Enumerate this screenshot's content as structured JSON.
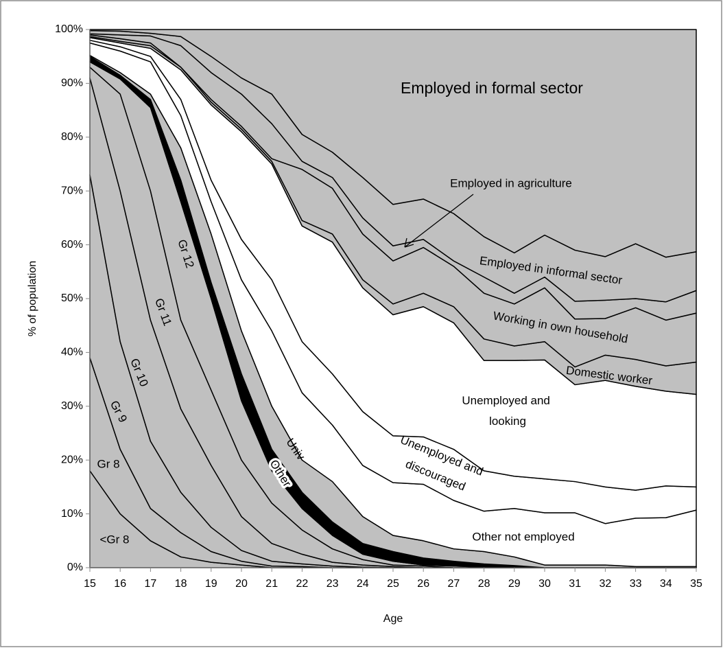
{
  "chart_data": {
    "type": "stacked_area",
    "x_label": "Age",
    "y_label": "% of population",
    "x": [
      15,
      16,
      17,
      18,
      19,
      20,
      21,
      22,
      23,
      24,
      25,
      26,
      27,
      28,
      29,
      30,
      31,
      32,
      33,
      34,
      35
    ],
    "xlim": [
      15,
      35
    ],
    "xticks": [
      15,
      16,
      17,
      18,
      19,
      20,
      21,
      22,
      23,
      24,
      25,
      26,
      27,
      28,
      29,
      30,
      31,
      32,
      33,
      34,
      35
    ],
    "ylim": [
      0,
      100
    ],
    "yticks": [
      {
        "value": 0,
        "label": "0%"
      },
      {
        "value": 10,
        "label": "10%"
      },
      {
        "value": 20,
        "label": "20%"
      },
      {
        "value": 30,
        "label": "30%"
      },
      {
        "value": 40,
        "label": "40%"
      },
      {
        "value": 50,
        "label": "50%"
      },
      {
        "value": 60,
        "label": "60%"
      },
      {
        "value": 70,
        "label": "70%"
      },
      {
        "value": 80,
        "label": "80%"
      },
      {
        "value": 90,
        "label": "90%"
      },
      {
        "value": 100,
        "label": "100%"
      }
    ],
    "series": [
      {
        "name": "<Gr 8",
        "color": "#c0c0c0",
        "values": [
          18,
          10,
          5,
          2,
          1,
          0.5,
          0,
          0,
          0,
          0,
          0,
          0,
          0,
          0,
          0,
          0,
          0,
          0,
          0,
          0,
          0
        ]
      },
      {
        "name": "Gr 8",
        "color": "#c0c0c0",
        "values": [
          21,
          12,
          6,
          4.5,
          2,
          0.7,
          0.3,
          0.2,
          0,
          0,
          0,
          0,
          0,
          0,
          0,
          0,
          0,
          0,
          0,
          0,
          0
        ]
      },
      {
        "name": "Gr 9",
        "color": "#c0c0c0",
        "values": [
          34,
          20,
          12.5,
          7.5,
          4.5,
          2,
          0.9,
          0.5,
          0.3,
          0.1,
          0,
          0,
          0,
          0,
          0,
          0,
          0,
          0,
          0,
          0,
          0
        ]
      },
      {
        "name": "Gr 10",
        "color": "#c0c0c0",
        "values": [
          18,
          28,
          22.5,
          15.5,
          11.5,
          6.3,
          3.3,
          1.8,
          0.7,
          0.4,
          0.2,
          0,
          0,
          0,
          0,
          0,
          0,
          0,
          0,
          0,
          0
        ]
      },
      {
        "name": "Gr 11",
        "color": "#c0c0c0",
        "values": [
          2,
          18,
          24,
          16.5,
          14,
          10.5,
          7.5,
          4.5,
          2.5,
          1,
          0.3,
          0.3,
          0,
          0,
          0,
          0,
          0,
          0,
          0,
          0,
          0
        ]
      },
      {
        "name": "Gr 12",
        "color": "#c0c0c0",
        "values": [
          1,
          2.8,
          15.5,
          22,
          17,
          11,
          6,
          4,
          2.5,
          1,
          0.7,
          0.2,
          0.3,
          0.1,
          0,
          0,
          0,
          0,
          0,
          0,
          0
        ]
      },
      {
        "name": "Other",
        "color": "#000000",
        "values": [
          1,
          0.7,
          1.5,
          4,
          3,
          5,
          4,
          3,
          2.5,
          2,
          1.8,
          1.3,
          0.9,
          0.6,
          0.4,
          0,
          0,
          0,
          0,
          0,
          0
        ]
      },
      {
        "name": "Univ",
        "color": "#c0c0c0",
        "values": [
          0.2,
          0.5,
          1,
          6,
          9,
          8,
          8,
          6,
          7.5,
          5,
          3,
          3.2,
          2.3,
          2.3,
          1.6,
          0.5,
          0.5,
          0.5,
          0.2,
          0.2,
          0.2
        ]
      },
      {
        "name": "Other not employed",
        "color": "#ffffff",
        "values": [
          2.3,
          4,
          6,
          6,
          6,
          9.5,
          14,
          12.5,
          10.5,
          9.5,
          9.8,
          10.5,
          9,
          7.5,
          9,
          9.7,
          9.7,
          7.7,
          9,
          9.1,
          10.5
        ]
      },
      {
        "name": "Unemployed and discouraged",
        "color": "#ffffff",
        "values": [
          0.5,
          0.8,
          1,
          3,
          4,
          7.5,
          9.5,
          9.5,
          9.5,
          10,
          8.7,
          8.8,
          9.5,
          7.5,
          6,
          6.3,
          5.8,
          6.8,
          5.2,
          5.9,
          4.3
        ]
      },
      {
        "name": "Unemployed and looking",
        "color": "#ffffff",
        "values": [
          0.5,
          0.7,
          1.5,
          5.5,
          14,
          20,
          21.5,
          21.5,
          24.5,
          23,
          22.5,
          24.2,
          23.5,
          20.5,
          21.5,
          22.1,
          18,
          19.8,
          19.3,
          17.6,
          17.2
        ]
      },
      {
        "name": "Domestic worker",
        "color": "#c0c0c0",
        "values": [
          0.2,
          0.3,
          0.5,
          0.5,
          0.5,
          0.5,
          0.5,
          1,
          1.5,
          1.5,
          2,
          2.5,
          3,
          4,
          2.7,
          3.4,
          3.3,
          4.7,
          5,
          4.7,
          6
        ]
      },
      {
        "name": "Working in own household",
        "color": "#c0c0c0",
        "values": [
          0.3,
          0.5,
          0.5,
          0,
          0.5,
          0.5,
          0.5,
          9.5,
          8.5,
          8.5,
          8,
          8.5,
          7.5,
          8.5,
          7.8,
          10,
          8.9,
          6.8,
          9.6,
          8.5,
          9.1
        ]
      },
      {
        "name": "Employed in agriculture",
        "color": "#c0c0c0",
        "values": [
          0.2,
          0.7,
          1.3,
          4,
          5,
          6,
          6.5,
          1.5,
          2,
          3,
          2.8,
          1.5,
          1,
          3,
          2,
          2,
          3.3,
          3.4,
          1.7,
          3.4,
          4.2
        ]
      },
      {
        "name": "Employed in informal sector",
        "color": "#c0c0c0",
        "values": [
          0.6,
          0.7,
          0.5,
          1.7,
          3,
          3,
          5.5,
          5,
          4.7,
          7.5,
          7.7,
          7.5,
          8.8,
          7.5,
          7.5,
          7.8,
          9.5,
          8.1,
          10.2,
          8.3,
          7.2
        ]
      },
      {
        "name": "Employed in formal sector",
        "color": "#c0c0c0",
        "values": [
          0.2,
          0.3,
          0.7,
          1.3,
          5,
          9,
          12,
          19.5,
          22.8,
          27.5,
          32.5,
          31.5,
          34.2,
          38.5,
          41.5,
          38.2,
          41,
          42.2,
          39.8,
          42.3,
          41.3
        ]
      }
    ]
  }
}
